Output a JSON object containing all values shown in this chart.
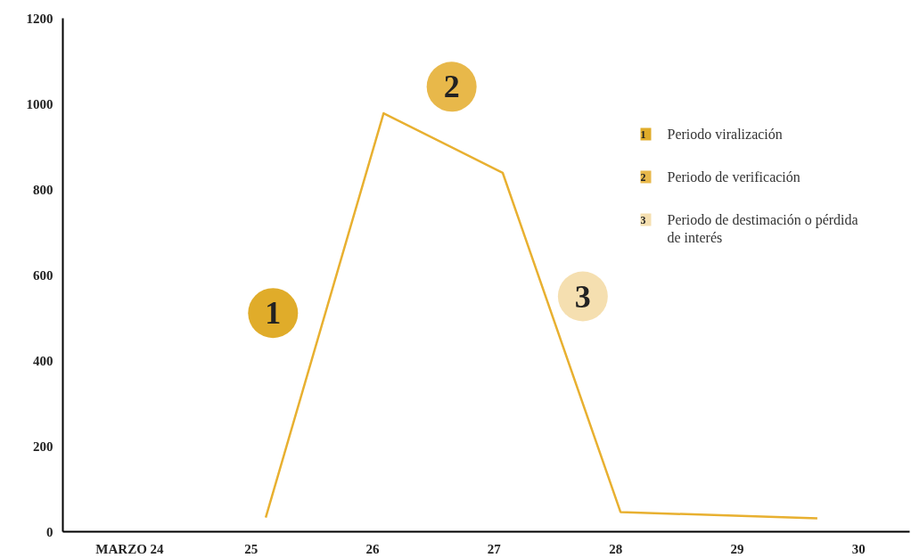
{
  "chart_data": {
    "type": "line",
    "xlim": [
      23.45,
      30.42
    ],
    "ylim": [
      0,
      1200
    ],
    "xticks": [
      {
        "value": 24,
        "label": "MARZO 24"
      },
      25,
      26,
      27,
      28,
      29,
      30
    ],
    "yticks": [
      0,
      200,
      400,
      600,
      800,
      1000,
      1200
    ],
    "grid": false,
    "legend": "top right",
    "annotations": [
      {
        "text": "1",
        "x": 25.18,
        "y": 511
      },
      {
        "text": "2",
        "x": 26.65,
        "y": 1040
      },
      {
        "text": "3",
        "x": 27.73,
        "y": 550
      }
    ],
    "series": [
      {
        "color": "#e8b030",
        "marker": "none",
        "x": [
          25.12,
          26.09,
          27.07,
          28.04,
          29.66
        ],
        "values": [
          33,
          978,
          839,
          46,
          31
        ]
      },
      {
        "type": "scatter",
        "marker": "circle",
        "name": "Periodo viralización",
        "color": "#e0ac2a",
        "x": [
          25.18
        ],
        "values": [
          511
        ]
      },
      {
        "type": "scatter",
        "marker": "circle",
        "name": "Periodo de verificación",
        "color": "#e8b84a",
        "x": [
          26.65
        ],
        "values": [
          1040
        ]
      },
      {
        "type": "scatter",
        "marker": "circle",
        "name": "Periodo de destimación o pérdida de interés",
        "color": "#f5dfb0",
        "x": [
          27.73
        ],
        "values": [
          550
        ]
      }
    ]
  }
}
